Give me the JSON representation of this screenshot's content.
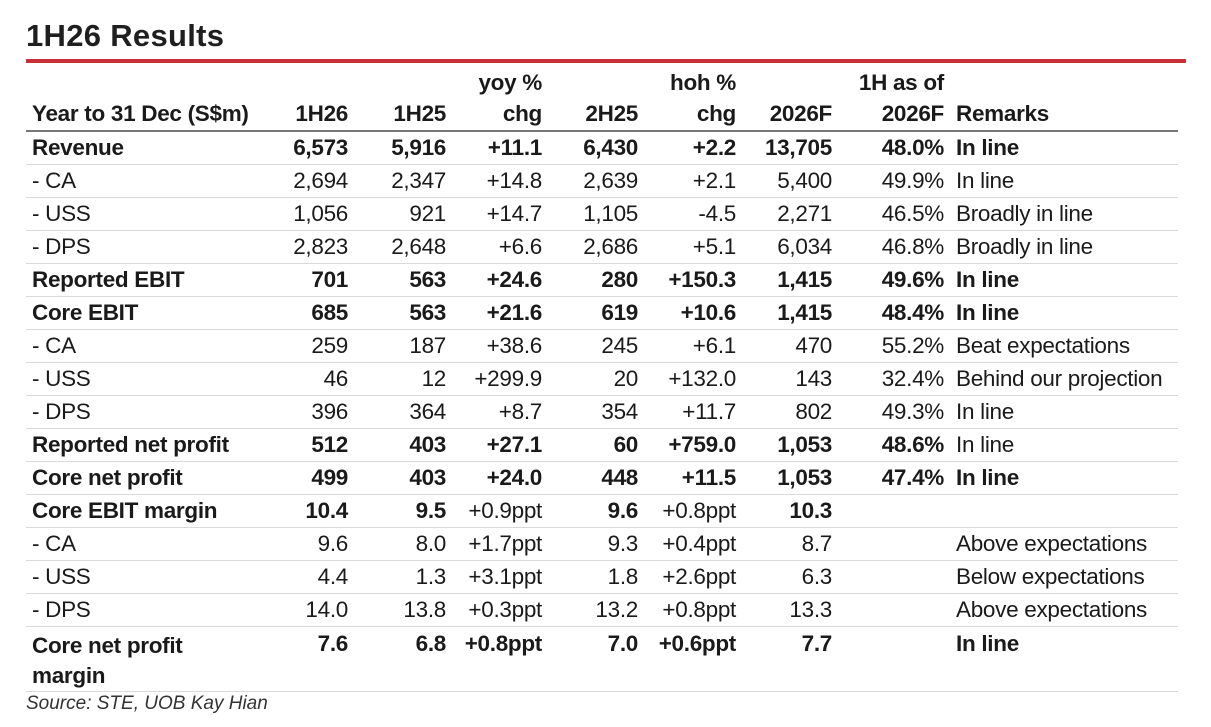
{
  "title": "1H26 Results",
  "header": {
    "col0": "Year to 31 Dec (S$m)",
    "col1": "1H26",
    "col2": "1H25",
    "col3_l1": "yoy %",
    "col3_l2": "chg",
    "col4": "2H25",
    "col5_l1": "hoh %",
    "col5_l2": "chg",
    "col6": "2026F",
    "col7_l1": "1H as of",
    "col7_l2": "2026F",
    "col8": "Remarks"
  },
  "rows": [
    {
      "label": "Revenue",
      "h1_26": "6,573",
      "h1_25": "5,916",
      "yoy": "+11.1",
      "h2_25": "6,430",
      "hoh": "+2.2",
      "f2026": "13,705",
      "pct": "48.0%",
      "remark": "In line"
    },
    {
      "label": " - CA",
      "h1_26": "2,694",
      "h1_25": "2,347",
      "yoy": "+14.8",
      "h2_25": "2,639",
      "hoh": "+2.1",
      "f2026": "5,400",
      "pct": "49.9%",
      "remark": "In line"
    },
    {
      "label": " - USS",
      "h1_26": "1,056",
      "h1_25": "921",
      "yoy": "+14.7",
      "h2_25": "1,105",
      "hoh": "-4.5",
      "f2026": "2,271",
      "pct": "46.5%",
      "remark": "Broadly in line"
    },
    {
      "label": " - DPS",
      "h1_26": "2,823",
      "h1_25": "2,648",
      "yoy": "+6.6",
      "h2_25": "2,686",
      "hoh": "+5.1",
      "f2026": "6,034",
      "pct": "46.8%",
      "remark": "Broadly in line"
    },
    {
      "label": "Reported EBIT",
      "h1_26": "701",
      "h1_25": "563",
      "yoy": "+24.6",
      "h2_25": "280",
      "hoh": "+150.3",
      "f2026": "1,415",
      "pct": "49.6%",
      "remark": "In line"
    },
    {
      "label": "Core EBIT",
      "h1_26": "685",
      "h1_25": "563",
      "yoy": "+21.6",
      "h2_25": "619",
      "hoh": "+10.6",
      "f2026": "1,415",
      "pct": "48.4%",
      "remark": "In line"
    },
    {
      "label": " - CA",
      "h1_26": "259",
      "h1_25": "187",
      "yoy": "+38.6",
      "h2_25": "245",
      "hoh": "+6.1",
      "f2026": "470",
      "pct": "55.2%",
      "remark": "Beat expectations"
    },
    {
      "label": " - USS",
      "h1_26": "46",
      "h1_25": "12",
      "yoy": "+299.9",
      "h2_25": "20",
      "hoh": "+132.0",
      "f2026": "143",
      "pct": "32.4%",
      "remark": "Behind our projection"
    },
    {
      "label": " - DPS",
      "h1_26": "396",
      "h1_25": "364",
      "yoy": "+8.7",
      "h2_25": "354",
      "hoh": "+11.7",
      "f2026": "802",
      "pct": "49.3%",
      "remark": "In line"
    },
    {
      "label": "Reported net profit",
      "h1_26": "512",
      "h1_25": "403",
      "yoy": "+27.1",
      "h2_25": "60",
      "hoh": "+759.0",
      "f2026": "1,053",
      "pct": "48.6%",
      "remark": "In line"
    },
    {
      "label": "Core net profit",
      "h1_26": "499",
      "h1_25": "403",
      "yoy": "+24.0",
      "h2_25": "448",
      "hoh": "+11.5",
      "f2026": "1,053",
      "pct": "47.4%",
      "remark": "In line"
    },
    {
      "label": "Core EBIT margin",
      "h1_26": "10.4",
      "h1_25": "9.5",
      "yoy": "+0.9ppt",
      "h2_25": "9.6",
      "hoh": "+0.8ppt",
      "f2026": "10.3",
      "pct": "",
      "remark": ""
    },
    {
      "label": " - CA",
      "h1_26": "9.6",
      "h1_25": "8.0",
      "yoy": "+1.7ppt",
      "h2_25": "9.3",
      "hoh": "+0.4ppt",
      "f2026": "8.7",
      "pct": "",
      "remark": "Above expectations"
    },
    {
      "label": " - USS",
      "h1_26": "4.4",
      "h1_25": "1.3",
      "yoy": "+3.1ppt",
      "h2_25": "1.8",
      "hoh": "+2.6ppt",
      "f2026": "6.3",
      "pct": "",
      "remark": "Below expectations"
    },
    {
      "label": " - DPS",
      "h1_26": "14.0",
      "h1_25": "13.8",
      "yoy": "+0.3ppt",
      "h2_25": "13.2",
      "hoh": "+0.8ppt",
      "f2026": "13.3",
      "pct": "",
      "remark": "Above expectations"
    },
    {
      "label": "Core net profit margin",
      "h1_26": "7.6",
      "h1_25": "6.8",
      "yoy": "+0.8ppt",
      "h2_25": "7.0",
      "hoh": "+0.6ppt",
      "f2026": "7.7",
      "pct": "",
      "remark": "In line"
    }
  ],
  "source": "Source: STE, UOB Kay Hian"
}
